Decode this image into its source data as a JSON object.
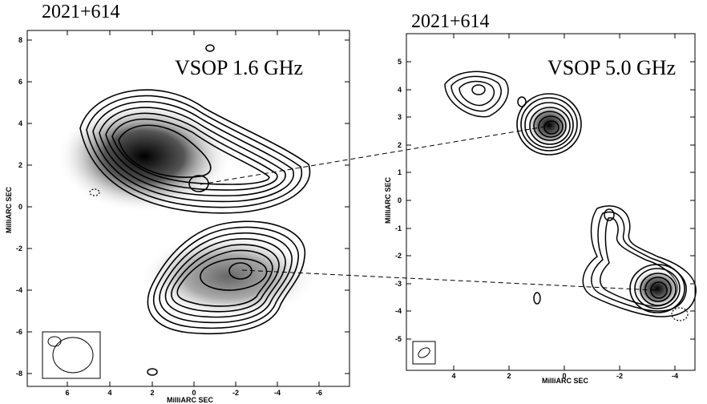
{
  "left_panel": {
    "title": "2021+614",
    "band_label": "VSOP 1.6 GHz",
    "xlabel": "MilliARC SEC",
    "ylabel": "MilliARC SEC",
    "xticks": [
      "6",
      "4",
      "2",
      "0",
      "-2",
      "-4",
      "-6"
    ],
    "yticks": [
      "8",
      "6",
      "4",
      "2",
      "0",
      "-2",
      "-4",
      "-6",
      "-8"
    ]
  },
  "right_panel": {
    "title": "2021+614",
    "band_label": "VSOP 5.0 GHz",
    "xlabel": "MilliARC SEC",
    "ylabel": "MilliARC SEC",
    "xticks": [
      "4",
      "2",
      "0",
      "-2",
      "-4"
    ],
    "yticks": [
      "5",
      "4",
      "3",
      "2",
      "1",
      "0",
      "-1",
      "-2",
      "-3",
      "-4",
      "-5"
    ]
  }
}
